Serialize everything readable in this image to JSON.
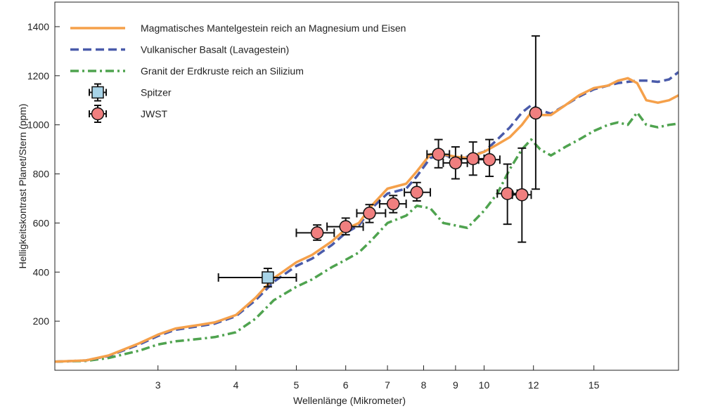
{
  "chart_data": {
    "type": "line",
    "xlabel": "Wellenlänge (Mikrometer)",
    "ylabel": "Helligkeitskontrast Planet/Stern (ppm)",
    "x_scale": "log",
    "xlim": [
      2.05,
      20.5
    ],
    "ylim": [
      0,
      1500
    ],
    "x_ticks": [
      3,
      4,
      5,
      6,
      7,
      8,
      9,
      10,
      12,
      15
    ],
    "y_ticks": [
      200,
      400,
      600,
      800,
      1000,
      1200,
      1400
    ],
    "grid": false,
    "legend_position": "top-left",
    "series": [
      {
        "name": "Magmatisches Mantelgestein reich an Magnesium und Eisen",
        "style": "solid",
        "color": "#F5A04A",
        "x": [
          2.05,
          2.3,
          2.5,
          2.8,
          3.0,
          3.2,
          3.5,
          3.7,
          4.0,
          4.3,
          4.6,
          5.0,
          5.3,
          5.7,
          6.0,
          6.3,
          6.6,
          7.0,
          7.5,
          7.8,
          8.2,
          8.6,
          9.0,
          9.4,
          10.0,
          10.5,
          11.0,
          11.5,
          11.9,
          12.3,
          12.8,
          13.5,
          14.2,
          15.0,
          15.8,
          16.4,
          17.0,
          17.6,
          18.2,
          19.0,
          19.8,
          20.5
        ],
        "y": [
          35,
          40,
          60,
          110,
          145,
          170,
          185,
          195,
          225,
          295,
          375,
          440,
          470,
          525,
          575,
          600,
          670,
          740,
          760,
          810,
          880,
          880,
          870,
          865,
          890,
          920,
          950,
          1000,
          1050,
          1040,
          1040,
          1080,
          1120,
          1150,
          1160,
          1180,
          1190,
          1170,
          1100,
          1090,
          1100,
          1120
        ]
      },
      {
        "name": "Vulkanischer Basalt (Lavagestein)",
        "style": "dashed",
        "color": "#4A5BAA",
        "x": [
          2.05,
          2.3,
          2.5,
          2.8,
          3.0,
          3.2,
          3.5,
          3.7,
          4.0,
          4.3,
          4.6,
          5.0,
          5.3,
          5.7,
          6.0,
          6.3,
          6.6,
          7.0,
          7.5,
          7.8,
          8.2,
          8.6,
          9.0,
          9.4,
          10.0,
          10.5,
          11.0,
          11.5,
          11.9,
          12.3,
          12.8,
          13.5,
          14.2,
          15.0,
          15.8,
          16.4,
          17.0,
          17.6,
          18.2,
          19.0,
          19.8,
          20.5
        ],
        "y": [
          35,
          40,
          58,
          105,
          140,
          165,
          180,
          190,
          220,
          285,
          360,
          425,
          455,
          510,
          560,
          590,
          660,
          720,
          740,
          790,
          865,
          880,
          860,
          870,
          890,
          940,
          990,
          1050,
          1080,
          1060,
          1045,
          1080,
          1115,
          1145,
          1160,
          1170,
          1175,
          1180,
          1180,
          1175,
          1185,
          1215
        ]
      },
      {
        "name": "Granit der Erdkruste reich an Silizium",
        "style": "dashdot",
        "color": "#4FA34F",
        "x": [
          2.05,
          2.3,
          2.5,
          2.8,
          3.0,
          3.2,
          3.5,
          3.7,
          4.0,
          4.3,
          4.6,
          5.0,
          5.3,
          5.7,
          6.0,
          6.3,
          6.6,
          7.0,
          7.5,
          7.8,
          8.2,
          8.6,
          9.0,
          9.4,
          10.0,
          10.5,
          11.0,
          11.5,
          11.9,
          12.3,
          12.8,
          13.5,
          14.2,
          15.0,
          15.8,
          16.4,
          17.0,
          17.6,
          18.2,
          19.0,
          19.8,
          20.5
        ],
        "y": [
          35,
          38,
          50,
          80,
          105,
          118,
          128,
          135,
          155,
          210,
          285,
          340,
          370,
          420,
          450,
          480,
          530,
          600,
          630,
          670,
          660,
          600,
          590,
          580,
          650,
          720,
          820,
          900,
          940,
          900,
          875,
          910,
          940,
          975,
          1000,
          1010,
          1000,
          1050,
          1000,
          990,
          1000,
          1005
        ]
      }
    ],
    "observations": [
      {
        "name": "Spitzer",
        "marker": "square",
        "color": "#A8D4E8",
        "points": [
          {
            "x": 4.5,
            "y": 378,
            "x_err": [
              3.75,
              5.0
            ],
            "y_err": [
              340,
              415
            ]
          }
        ]
      },
      {
        "name": "JWST",
        "marker": "circle",
        "color": "#F07F7F",
        "points": [
          {
            "x": 5.4,
            "y": 560,
            "x_err": [
              5.0,
              5.75
            ],
            "y_err": [
              530,
              592
            ]
          },
          {
            "x": 6.0,
            "y": 585,
            "x_err": [
              5.6,
              6.4
            ],
            "y_err": [
              552,
              620
            ]
          },
          {
            "x": 6.55,
            "y": 640,
            "x_err": [
              6.25,
              6.95
            ],
            "y_err": [
              602,
              675
            ]
          },
          {
            "x": 7.15,
            "y": 678,
            "x_err": [
              6.8,
              7.5
            ],
            "y_err": [
              642,
              712
            ]
          },
          {
            "x": 7.8,
            "y": 725,
            "x_err": [
              7.45,
              8.2
            ],
            "y_err": [
              690,
              765
            ]
          },
          {
            "x": 8.45,
            "y": 880,
            "x_err": [
              8.1,
              8.8
            ],
            "y_err": [
              825,
              940
            ]
          },
          {
            "x": 9.0,
            "y": 845,
            "x_err": [
              8.6,
              9.4
            ],
            "y_err": [
              780,
              910
            ]
          },
          {
            "x": 9.6,
            "y": 862,
            "x_err": [
              9.2,
              10.0
            ],
            "y_err": [
              795,
              930
            ]
          },
          {
            "x": 10.2,
            "y": 858,
            "x_err": [
              9.8,
              10.6
            ],
            "y_err": [
              790,
              940
            ]
          },
          {
            "x": 10.9,
            "y": 720,
            "x_err": [
              10.5,
              11.3
            ],
            "y_err": [
              595,
              840
            ]
          },
          {
            "x": 11.5,
            "y": 715,
            "x_err": [
              11.1,
              11.9
            ],
            "y_err": [
              522,
              905
            ]
          },
          {
            "x": 12.1,
            "y": 1048,
            "x_err": [
              11.9,
              12.3
            ],
            "y_err": [
              738,
              1362
            ]
          }
        ]
      }
    ]
  }
}
